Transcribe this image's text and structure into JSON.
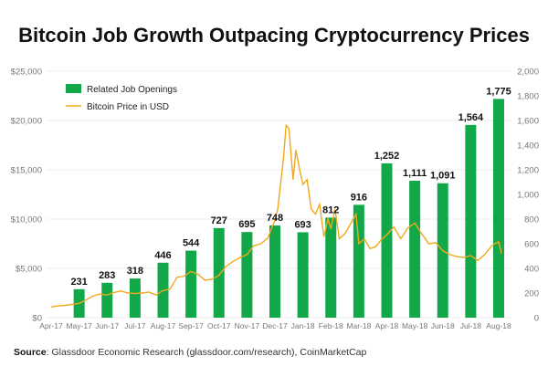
{
  "chart_data": {
    "type": "bar+line",
    "title": "Bitcoin Job Growth Outpacing Cryptocurrency Prices",
    "categories": [
      "Apr-17",
      "May-17",
      "Jun-17",
      "Jul-17",
      "Aug-17",
      "Sep-17",
      "Oct-17",
      "Nov-17",
      "Dec-17",
      "Jan-18",
      "Feb-18",
      "Mar-18",
      "Apr-18",
      "May-18",
      "Jun-18",
      "Jul-18",
      "Aug-18"
    ],
    "left_axis": {
      "ylim": [
        0,
        25000
      ],
      "ticks": [
        "$0",
        "$5,000",
        "$10,000",
        "$15,000",
        "$20,000",
        "$25,000"
      ],
      "tick_values": [
        0,
        5000,
        10000,
        15000,
        20000,
        25000
      ]
    },
    "right_axis": {
      "ylim": [
        0,
        2000
      ],
      "ticks": [
        "0",
        "200",
        "400",
        "600",
        "800",
        "1,000",
        "1,200",
        "1,400",
        "1,600",
        "1,800",
        "2,000"
      ],
      "tick_values": [
        0,
        200,
        400,
        600,
        800,
        1000,
        1200,
        1400,
        1600,
        1800,
        2000
      ]
    },
    "grid": true,
    "legend_position": "top-left",
    "series": [
      {
        "name": "Related Job Openings",
        "type": "bar",
        "axis": "right",
        "color": "#12a84a",
        "values": [
          null,
          231,
          283,
          318,
          446,
          544,
          727,
          695,
          748,
          693,
          812,
          916,
          1252,
          1111,
          1091,
          1564,
          1775
        ],
        "labels": [
          "",
          "231",
          "283",
          "318",
          "446",
          "544",
          "727",
          "695",
          "748",
          "693",
          "812",
          "916",
          "1,252",
          "1,111",
          "1,091",
          "1,564",
          "1,775"
        ]
      },
      {
        "name": "Bitcoin Price in USD",
        "type": "line",
        "axis": "left",
        "color": "#f0a91c",
        "x": [
          0,
          0.25,
          0.5,
          0.75,
          1,
          1.25,
          1.5,
          1.75,
          2,
          2.25,
          2.5,
          2.75,
          3,
          3.25,
          3.5,
          3.75,
          4,
          4.25,
          4.5,
          4.75,
          5,
          5.25,
          5.5,
          5.75,
          6,
          6.25,
          6.5,
          6.75,
          7,
          7.25,
          7.5,
          7.75,
          8,
          8.1,
          8.2,
          8.3,
          8.4,
          8.5,
          8.65,
          8.75,
          8.9,
          9,
          9.15,
          9.3,
          9.45,
          9.6,
          9.75,
          9.9,
          10,
          10.15,
          10.3,
          10.5,
          10.7,
          10.9,
          11,
          11.2,
          11.4,
          11.6,
          11.8,
          12,
          12.25,
          12.5,
          12.75,
          13,
          13.25,
          13.5,
          13.75,
          14,
          14.25,
          14.5,
          14.75,
          15,
          15.25,
          15.5,
          15.75,
          16,
          16.1
        ],
        "y": [
          1080,
          1200,
          1250,
          1350,
          1450,
          1800,
          2200,
          2400,
          2300,
          2550,
          2700,
          2500,
          2450,
          2500,
          2600,
          2300,
          2750,
          2900,
          4100,
          4200,
          4700,
          4400,
          3800,
          3900,
          4300,
          5200,
          5700,
          6100,
          6400,
          7300,
          7500,
          8100,
          9900,
          11000,
          13500,
          16000,
          19500,
          19200,
          14000,
          17000,
          14800,
          13500,
          14000,
          11000,
          10500,
          11500,
          8200,
          10000,
          9000,
          11000,
          8000,
          8500,
          9500,
          10500,
          7500,
          8000,
          7000,
          7200,
          7900,
          8400,
          9200,
          8000,
          9100,
          9600,
          8500,
          7500,
          7600,
          6800,
          6400,
          6200,
          6100,
          6300,
          5800,
          6400,
          7300,
          7700,
          6500
        ]
      }
    ],
    "source_label": "Source",
    "source_text": ": Glassdoor Economic Research (glassdoor.com/research), CoinMarketCap"
  }
}
